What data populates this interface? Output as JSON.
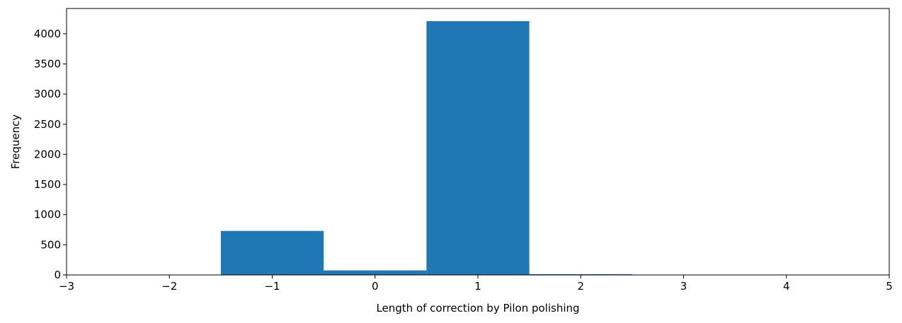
{
  "chart_data": {
    "type": "bar",
    "title": "",
    "xlabel": "Length of correction by Pilon polishing",
    "ylabel": "Frequency",
    "xlim": [
      -3,
      5
    ],
    "ylim": [
      0,
      4420
    ],
    "grid": false,
    "bin_width": 1,
    "bins": [
      {
        "center": -1,
        "value": 730
      },
      {
        "center": 0,
        "value": 75
      },
      {
        "center": 1,
        "value": 4210
      },
      {
        "center": 2,
        "value": 12
      }
    ],
    "x_ticks": [
      {
        "value": -3,
        "label": "−3"
      },
      {
        "value": -2,
        "label": "−2"
      },
      {
        "value": -1,
        "label": "−1"
      },
      {
        "value": 0,
        "label": "0"
      },
      {
        "value": 1,
        "label": "1"
      },
      {
        "value": 2,
        "label": "2"
      },
      {
        "value": 3,
        "label": "3"
      },
      {
        "value": 4,
        "label": "4"
      },
      {
        "value": 5,
        "label": "5"
      }
    ],
    "y_ticks": [
      {
        "value": 0,
        "label": "0"
      },
      {
        "value": 500,
        "label": "500"
      },
      {
        "value": 1000,
        "label": "1000"
      },
      {
        "value": 1500,
        "label": "1500"
      },
      {
        "value": 2000,
        "label": "2000"
      },
      {
        "value": 2500,
        "label": "2500"
      },
      {
        "value": 3000,
        "label": "3000"
      },
      {
        "value": 3500,
        "label": "3500"
      },
      {
        "value": 4000,
        "label": "4000"
      }
    ],
    "bar_color": "#1f77b4"
  }
}
